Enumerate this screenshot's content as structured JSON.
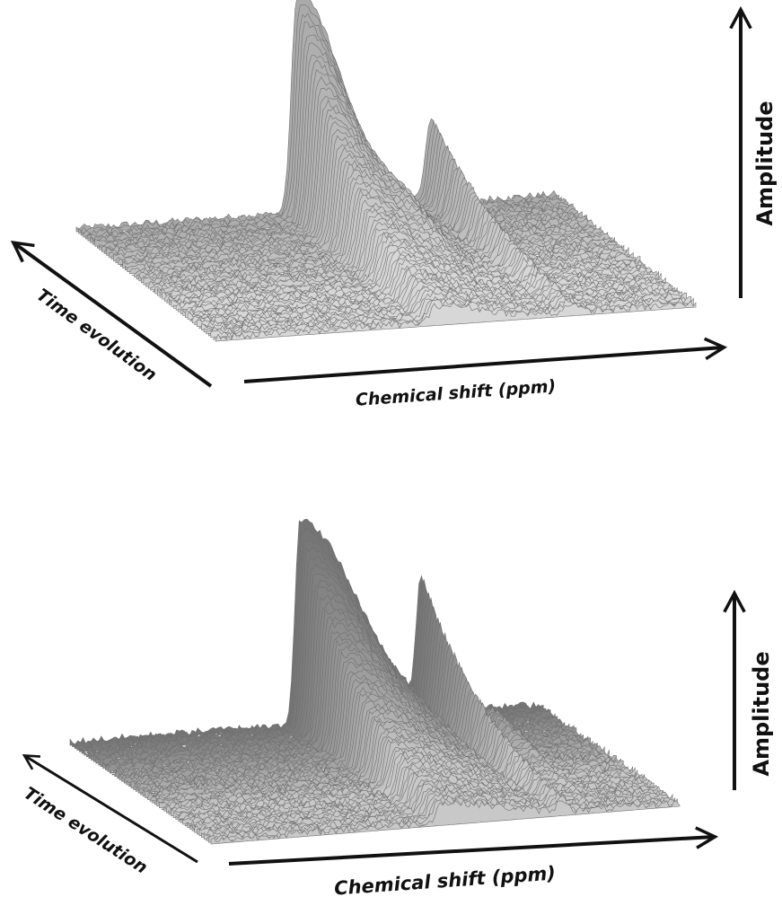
{
  "panels": [
    {
      "y_axis_label": "Amplitude",
      "depth_axis_label": "Time evolution",
      "x_axis_label": "Chemical shift (ppm)"
    },
    {
      "y_axis_label": "Amplitude",
      "depth_axis_label": "Time evolution",
      "x_axis_label": "Chemical shift (ppm)"
    }
  ]
}
